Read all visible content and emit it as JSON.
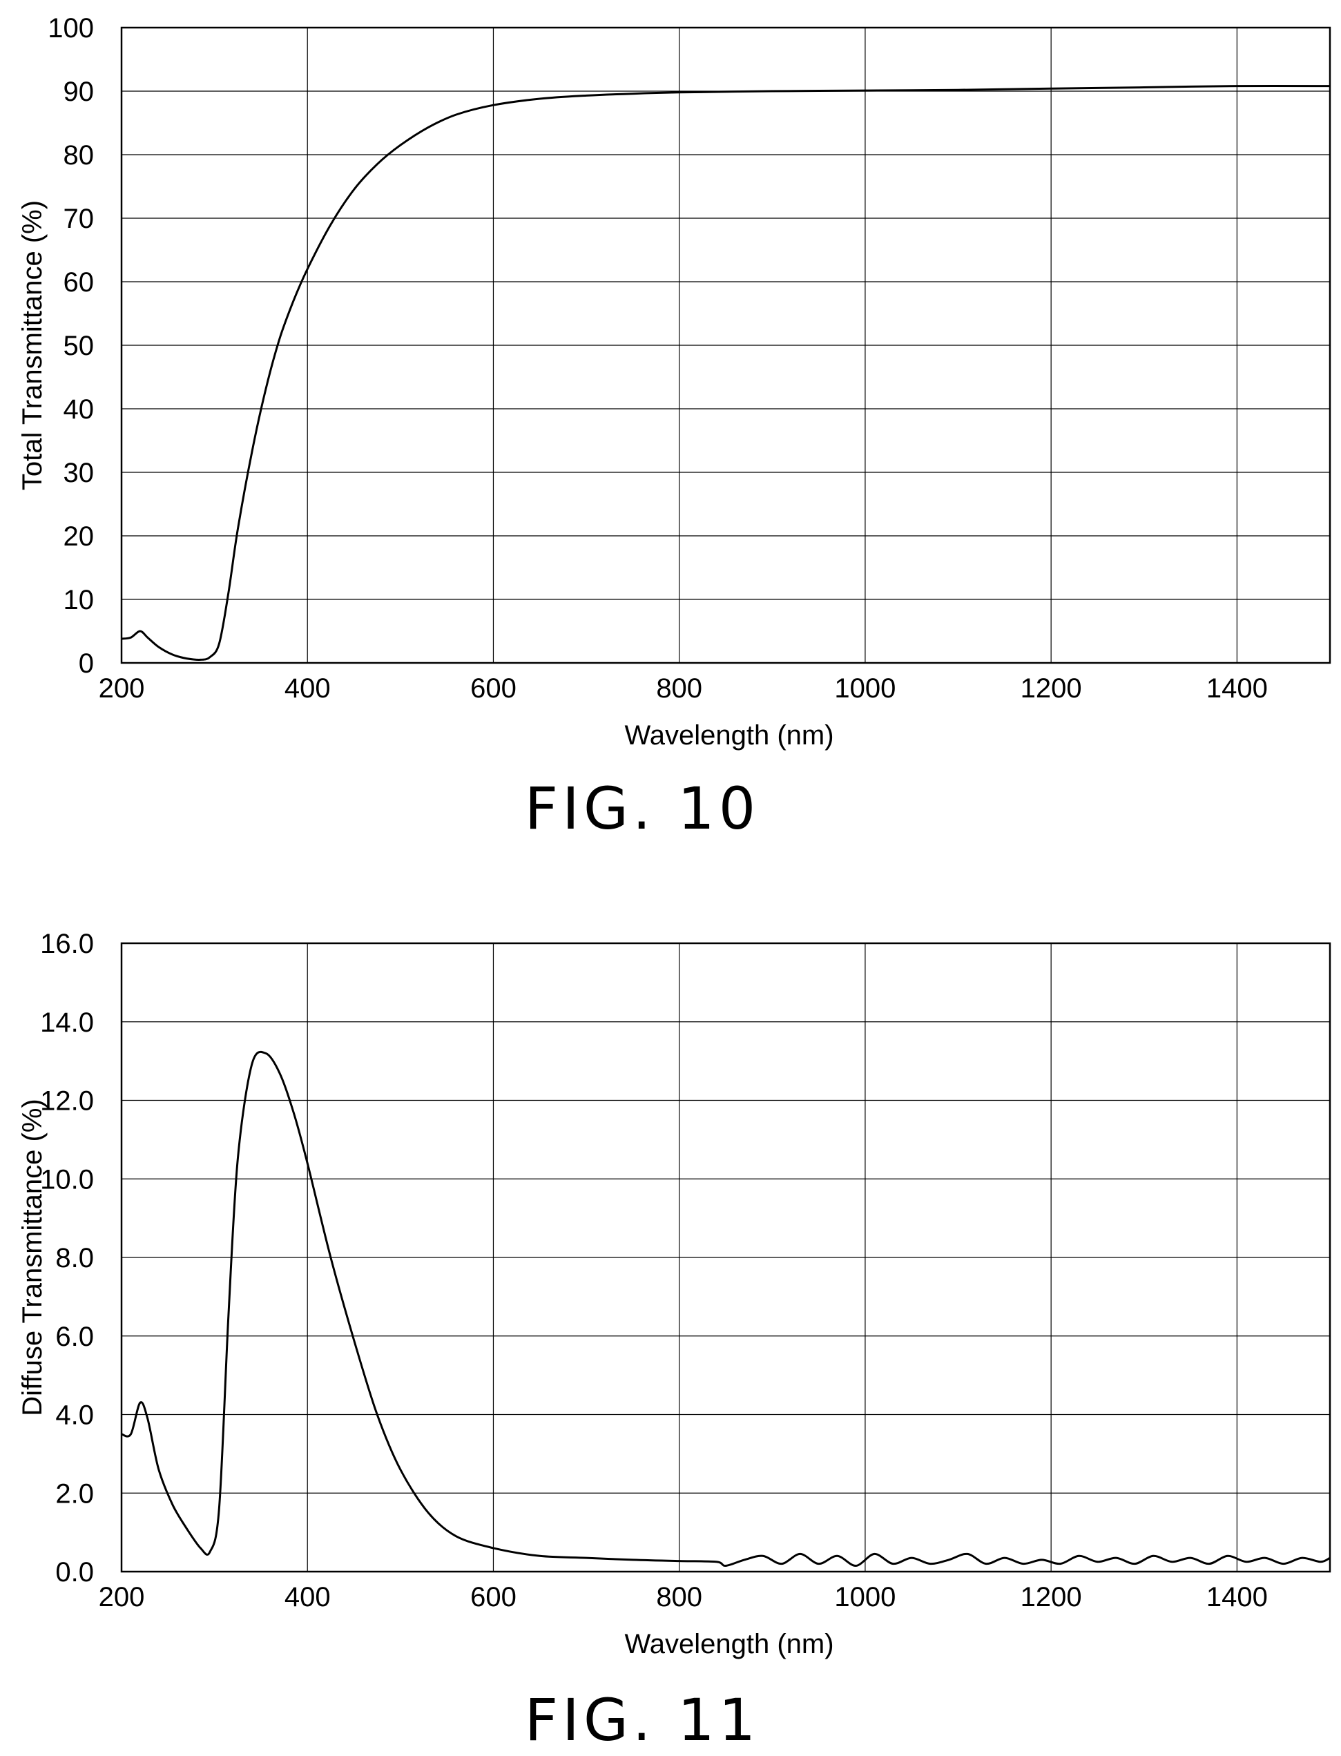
{
  "chart_data": [
    {
      "type": "line",
      "figure_label": "FIG. 10",
      "xlabel": "Wavelength (nm)",
      "ylabel": "Total Transmittance (%)",
      "xlim": [
        200,
        1500
      ],
      "ylim": [
        0,
        100
      ],
      "xticks": [
        200,
        400,
        600,
        800,
        1000,
        1200,
        1400
      ],
      "xtick_labels": [
        "200",
        "400",
        "600",
        "800",
        "1000",
        "1200",
        "1400"
      ],
      "yticks": [
        0,
        10,
        20,
        30,
        40,
        50,
        60,
        70,
        80,
        90,
        100
      ],
      "ytick_labels": [
        "0",
        "10",
        "20",
        "30",
        "40",
        "50",
        "60",
        "70",
        "80",
        "90",
        "100"
      ],
      "grid": true,
      "series": [
        {
          "x": [
            200,
            210,
            220,
            228,
            240,
            255,
            270,
            285,
            295,
            305,
            315,
            325,
            340,
            355,
            370,
            385,
            400,
            425,
            450,
            475,
            500,
            530,
            560,
            600,
            650,
            700,
            750,
            800,
            900,
            1000,
            1100,
            1200,
            1300,
            1400,
            1500
          ],
          "y": [
            3.8,
            4.0,
            5.0,
            4.0,
            2.5,
            1.3,
            0.7,
            0.5,
            0.9,
            3.0,
            11.0,
            21.0,
            33.0,
            43.0,
            51.0,
            57.0,
            62.0,
            69.0,
            74.5,
            78.5,
            81.5,
            84.3,
            86.3,
            87.8,
            88.8,
            89.3,
            89.6,
            89.8,
            90.0,
            90.1,
            90.2,
            90.4,
            90.6,
            90.8,
            90.8
          ]
        }
      ]
    },
    {
      "type": "line",
      "figure_label": "FIG. 11",
      "xlabel": "Wavelength (nm)",
      "ylabel": "Diffuse Transmittance (%)",
      "xlim": [
        200,
        1500
      ],
      "ylim": [
        0,
        16
      ],
      "xticks": [
        200,
        400,
        600,
        800,
        1000,
        1200,
        1400
      ],
      "xtick_labels": [
        "200",
        "400",
        "600",
        "800",
        "1000",
        "1200",
        "1400"
      ],
      "yticks": [
        0,
        2,
        4,
        6,
        8,
        10,
        12,
        14,
        16
      ],
      "ytick_labels": [
        "0.0",
        "2.0",
        "4.0",
        "6.0",
        "8.0",
        "10.0",
        "12.0",
        "14.0",
        "16.0"
      ],
      "grid": true,
      "series": [
        {
          "x": [
            200,
            210,
            220,
            228,
            240,
            255,
            270,
            285,
            295,
            305,
            315,
            325,
            340,
            355,
            370,
            385,
            400,
            425,
            450,
            475,
            500,
            530,
            560,
            600,
            650,
            700,
            750,
            800,
            840,
            850,
            870,
            890,
            910,
            930,
            950,
            970,
            990,
            1010,
            1030,
            1050,
            1070,
            1090,
            1110,
            1130,
            1150,
            1170,
            1190,
            1210,
            1230,
            1250,
            1270,
            1290,
            1310,
            1330,
            1350,
            1370,
            1390,
            1410,
            1430,
            1450,
            1470,
            1490,
            1500
          ],
          "y": [
            3.5,
            3.5,
            4.3,
            3.9,
            2.6,
            1.7,
            1.1,
            0.6,
            0.5,
            1.6,
            6.5,
            10.5,
            12.9,
            13.2,
            12.7,
            11.7,
            10.4,
            8.0,
            5.9,
            4.0,
            2.6,
            1.5,
            0.9,
            0.6,
            0.4,
            0.35,
            0.3,
            0.27,
            0.25,
            0.15,
            0.3,
            0.4,
            0.2,
            0.45,
            0.2,
            0.4,
            0.15,
            0.45,
            0.2,
            0.35,
            0.2,
            0.3,
            0.45,
            0.2,
            0.35,
            0.2,
            0.3,
            0.2,
            0.4,
            0.25,
            0.35,
            0.2,
            0.4,
            0.25,
            0.35,
            0.2,
            0.4,
            0.25,
            0.35,
            0.2,
            0.35,
            0.25,
            0.35
          ]
        }
      ]
    }
  ]
}
